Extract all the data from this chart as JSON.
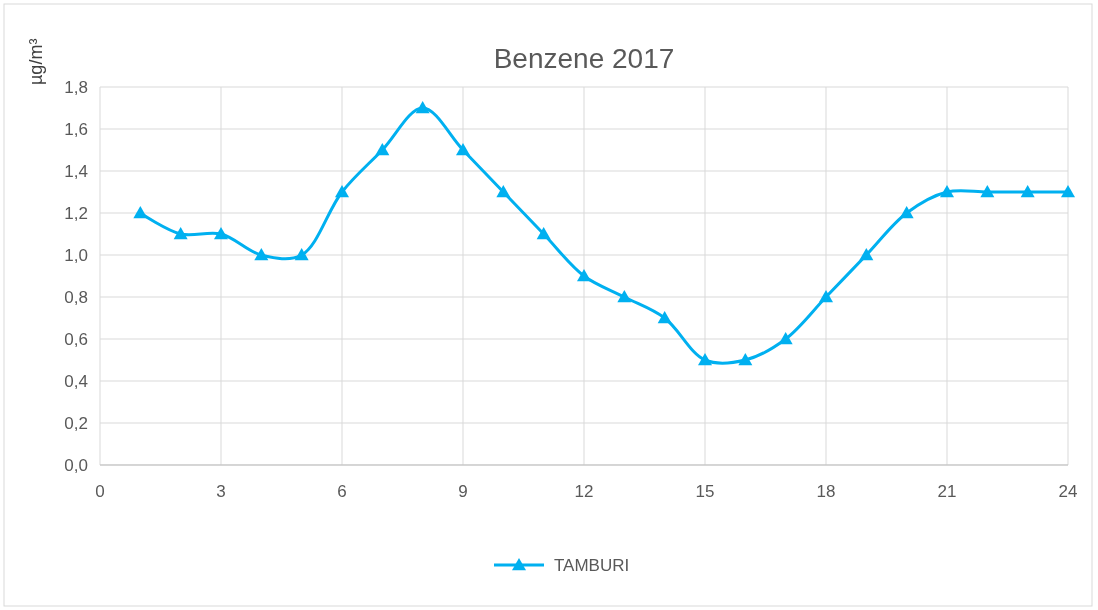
{
  "chart_data": {
    "type": "line",
    "title": "Benzene 2017",
    "ylabel": "µg/m³",
    "x": [
      1,
      2,
      3,
      4,
      5,
      6,
      7,
      8,
      9,
      10,
      11,
      12,
      13,
      14,
      15,
      16,
      17,
      18,
      19,
      20,
      21,
      22,
      23,
      24
    ],
    "series": [
      {
        "name": "TAMBURI",
        "color": "#00b0f0",
        "values": [
          1.2,
          1.1,
          1.1,
          1.0,
          1.0,
          1.3,
          1.5,
          1.7,
          1.5,
          1.3,
          1.1,
          0.9,
          0.8,
          0.7,
          0.5,
          0.5,
          0.6,
          0.8,
          1.0,
          1.2,
          1.3,
          1.3,
          1.3,
          1.3
        ]
      }
    ],
    "xlim": [
      0,
      24
    ],
    "xticks": [
      0,
      3,
      6,
      9,
      12,
      15,
      18,
      21,
      24
    ],
    "ylim": [
      0,
      1.8
    ],
    "yticks": [
      {
        "value": 0,
        "label": "0,0"
      },
      {
        "value": 0.2,
        "label": "0,2"
      },
      {
        "value": 0.4,
        "label": "0,4"
      },
      {
        "value": 0.6,
        "label": "0,6"
      },
      {
        "value": 0.8,
        "label": "0,8"
      },
      {
        "value": 1,
        "label": "1,0"
      },
      {
        "value": 1.2,
        "label": "1,2"
      },
      {
        "value": 1.4,
        "label": "1,4"
      },
      {
        "value": 1.6,
        "label": "1,6"
      },
      {
        "value": 1.8,
        "label": "1,8"
      }
    ],
    "grid": true,
    "legend": "bottom",
    "marker": "triangle",
    "line_style": "solid"
  }
}
